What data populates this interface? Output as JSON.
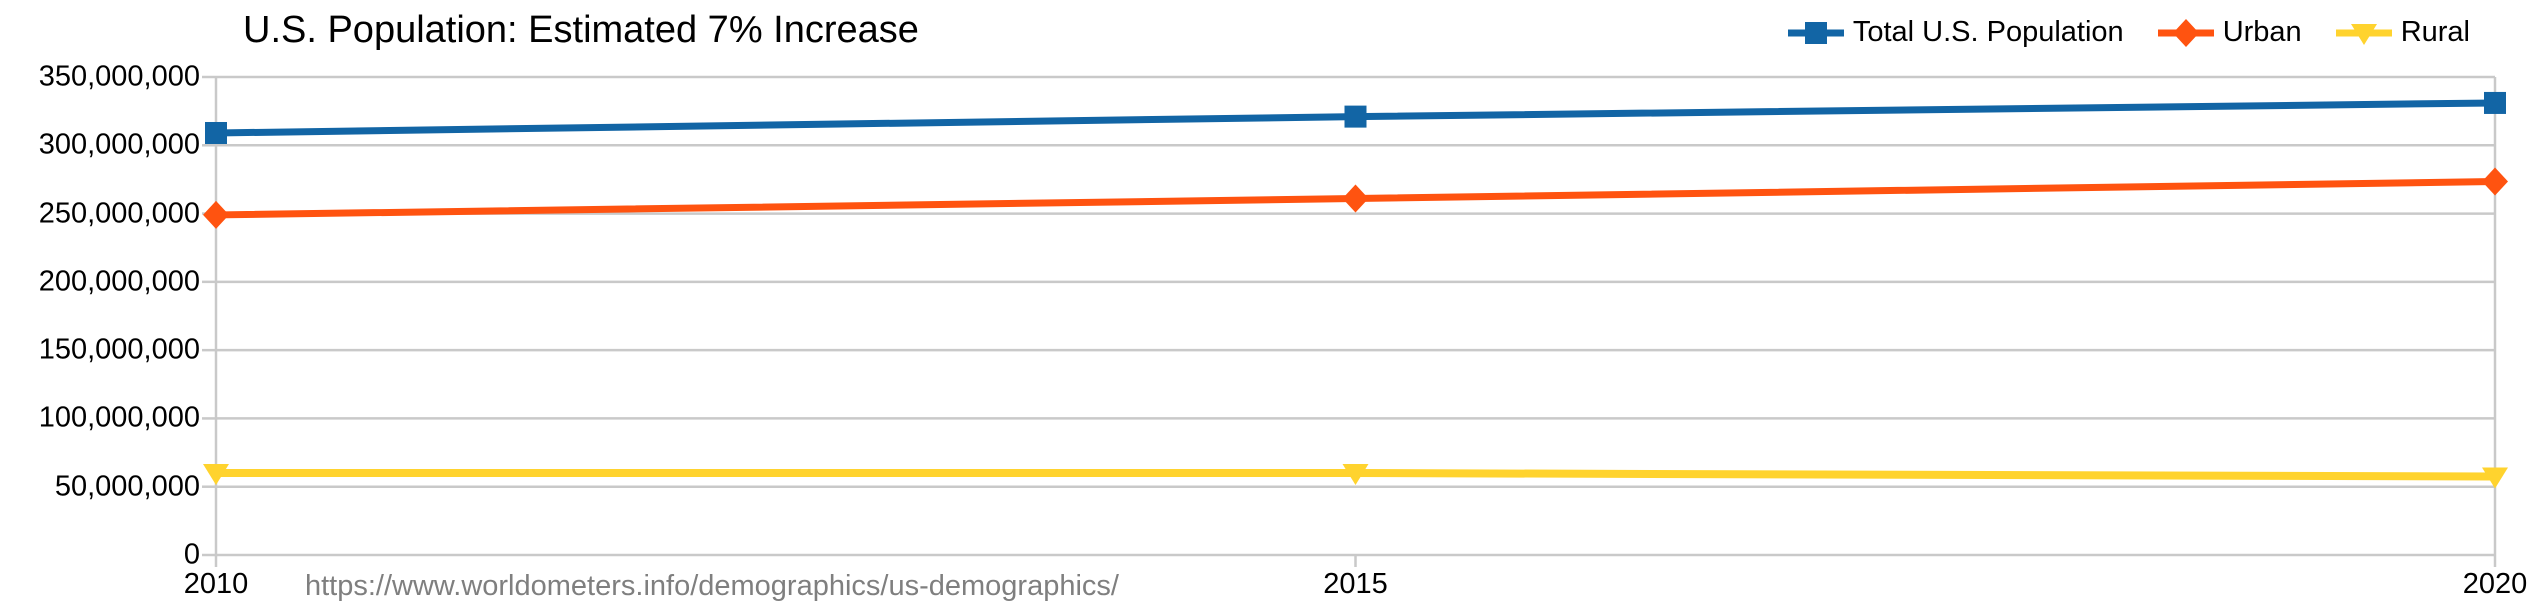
{
  "chart_data": {
    "type": "line",
    "title": "U.S. Population: Estimated 7% Increase",
    "xlabel": "",
    "ylabel": "",
    "x": [
      2010,
      2015,
      2020
    ],
    "xticks_labels": [
      "2010",
      "2015",
      "2020"
    ],
    "ylim": [
      0,
      350000000
    ],
    "ytick_step": 50000000,
    "yticks_labels": [
      "0",
      "50,000,000",
      "100,000,000",
      "150,000,000",
      "200,000,000",
      "250,000,000",
      "300,000,000",
      "350,000,000"
    ],
    "grid": "horizontal",
    "legend_position": "top-right",
    "series": [
      {
        "name": "Total U.S. Population",
        "marker": "square",
        "color": "#1265A5",
        "values": [
          309000000,
          321000000,
          331000000
        ]
      },
      {
        "name": "Urban",
        "marker": "diamond",
        "color": "#FF5310",
        "values": [
          249000000,
          261000000,
          273500000
        ]
      },
      {
        "name": "Rural",
        "marker": "triangle-down",
        "color": "#FFD32E",
        "values": [
          60000000,
          60000000,
          57500000
        ]
      }
    ]
  },
  "source_url": "https://www.worldometers.info/demographics/us-demographics/",
  "colors": {
    "grid": "#C9C9C9",
    "axis": "#C9C9C9",
    "title_text": "#000000",
    "tick_text": "#000000",
    "url_text": "#7F7F7F",
    "background": "#FFFFFF"
  }
}
